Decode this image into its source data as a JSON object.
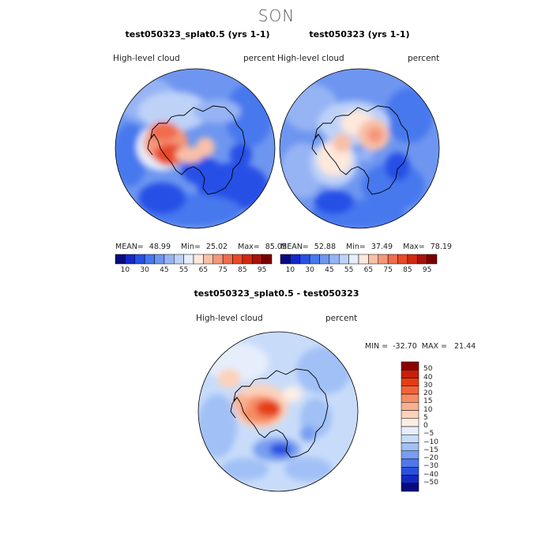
{
  "title": "SON",
  "panels": [
    {
      "title": "test050323_splat0.5 (yrs 1-1)",
      "variable": "High-level cloud",
      "units": "percent",
      "stats": {
        "mean": "48.99",
        "min": "25.02",
        "max": "85.05"
      },
      "stats_labels": {
        "mean": "MEAN=",
        "min": "Min=",
        "max": "Max="
      }
    },
    {
      "title": "test050323 (yrs 1-1)",
      "variable": "High-level cloud",
      "units": "percent",
      "stats": {
        "mean": "52.88",
        "min": "37.49",
        "max": "78.19"
      },
      "stats_labels": {
        "mean": "MEAN=",
        "min": "Min=",
        "max": "Max="
      }
    },
    {
      "title": "test050323_splat0.5 - test050323",
      "variable": "High-level cloud",
      "units": "percent",
      "minmax": {
        "min_label": "MIN =",
        "min": "-32.70",
        "max_label": "MAX =",
        "max": "21.44"
      }
    }
  ],
  "colorbar_abs": {
    "tick_labels": [
      "10",
      "30",
      "45",
      "55",
      "65",
      "75",
      "85",
      "95"
    ],
    "colors": [
      "#0a0a80",
      "#1428c8",
      "#2850e6",
      "#4678ee",
      "#6e96f0",
      "#96b4f4",
      "#bed2f8",
      "#e6eefc",
      "#fde8dc",
      "#f8c0a8",
      "#f4967a",
      "#f06c4e",
      "#e84a28",
      "#d22810",
      "#a8120a",
      "#7a0000"
    ]
  },
  "colorbar_diff": {
    "tick_labels": [
      "50",
      "40",
      "30",
      "20",
      "15",
      "10",
      "5",
      "0",
      "−5",
      "−10",
      "−15",
      "−20",
      "−30",
      "−40",
      "−50"
    ],
    "colors": [
      "#8c0000",
      "#c81e0a",
      "#e63c14",
      "#f0643c",
      "#f58c64",
      "#f8b090",
      "#fcd2bc",
      "#fdeee4",
      "#e6eefc",
      "#c8dcfa",
      "#a0c0f6",
      "#789ef0",
      "#5078ea",
      "#2850e0",
      "#1428c0",
      "#0a0a80"
    ]
  }
}
